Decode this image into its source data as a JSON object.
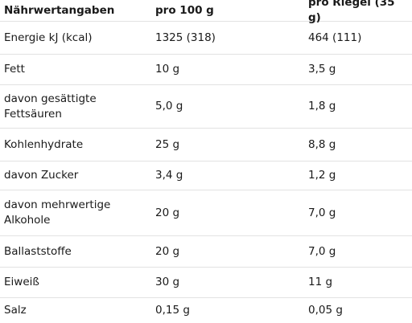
{
  "table": {
    "header": {
      "col1": "Nährwertangaben",
      "col2": "pro 100 g",
      "col3": "pro Riegel (35 g)"
    },
    "rows": [
      {
        "name": "Energie kJ (kcal)",
        "per100": "1325 (318)",
        "perBar": "464 (111)"
      },
      {
        "name": "Fett",
        "per100": "10 g",
        "perBar": "3,5 g"
      },
      {
        "name": "davon gesättigte Fettsäuren",
        "per100": "5,0 g",
        "perBar": "1,8 g"
      },
      {
        "name": "Kohlenhydrate",
        "per100": "25 g",
        "perBar": "8,8 g"
      },
      {
        "name": "davon Zucker",
        "per100": "3,4 g",
        "perBar": "1,2 g"
      },
      {
        "name": "davon mehrwertige Alkohole",
        "per100": "20 g",
        "perBar": "7,0 g"
      },
      {
        "name": "Ballaststoffe",
        "per100": "20 g",
        "perBar": "7,0 g"
      },
      {
        "name": "Eiweiß",
        "per100": "30 g",
        "perBar": "11 g"
      },
      {
        "name": "Salz",
        "per100": "0,15 g",
        "perBar": "0,05 g"
      }
    ]
  }
}
